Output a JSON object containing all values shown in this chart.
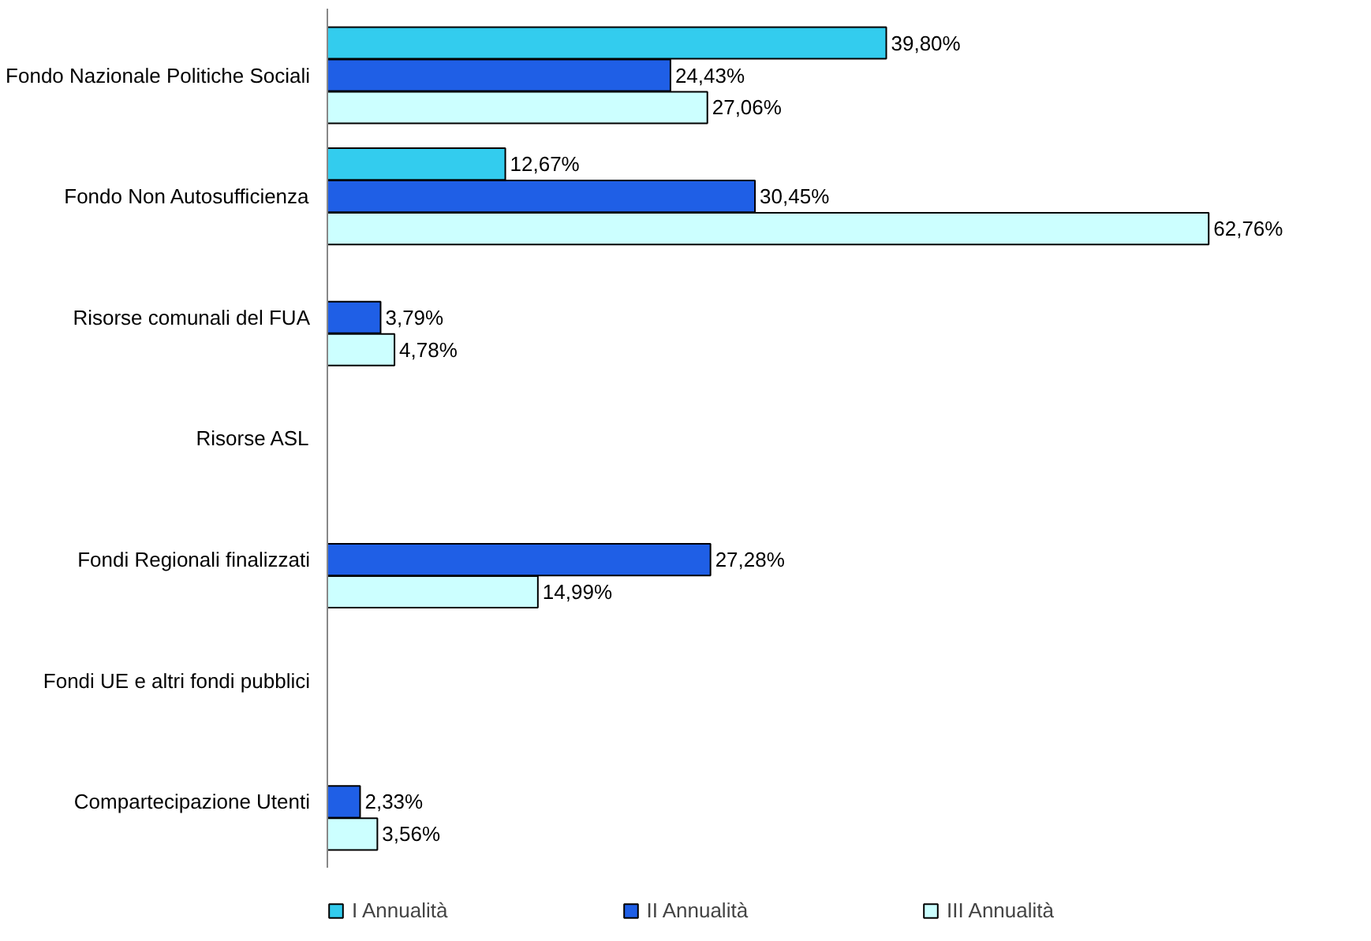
{
  "chart_data": {
    "type": "bar",
    "orientation": "horizontal",
    "categories": [
      "Fondo Nazionale Politiche Sociali",
      "Fondo Non Autosufficienza",
      "Risorse comunali del FUA",
      "Risorse ASL",
      "Fondi Regionali finalizzati",
      "Fondi UE e altri fondi pubblici",
      "Compartecipazione Utenti"
    ],
    "series": [
      {
        "name": "I Annualità",
        "color": "#33ccee",
        "values": [
          39.8,
          12.67,
          null,
          null,
          null,
          null,
          null
        ],
        "value_labels": [
          "39,80%",
          "12,67%",
          null,
          null,
          null,
          null,
          null
        ]
      },
      {
        "name": "II Annualità",
        "color": "#1f5fe6",
        "values": [
          24.43,
          30.45,
          3.79,
          null,
          27.28,
          null,
          2.33
        ],
        "value_labels": [
          "24,43%",
          "30,45%",
          "3,79%",
          null,
          "27,28%",
          null,
          "2,33%"
        ]
      },
      {
        "name": "III Annualità",
        "color": "#ccffff",
        "values": [
          27.06,
          62.76,
          4.78,
          null,
          14.99,
          null,
          3.56
        ],
        "value_labels": [
          "27,06%",
          "62,76%",
          "4,78%",
          null,
          "14,99%",
          null,
          "3,56%"
        ]
      }
    ],
    "legend": "bottom",
    "grid": false
  }
}
